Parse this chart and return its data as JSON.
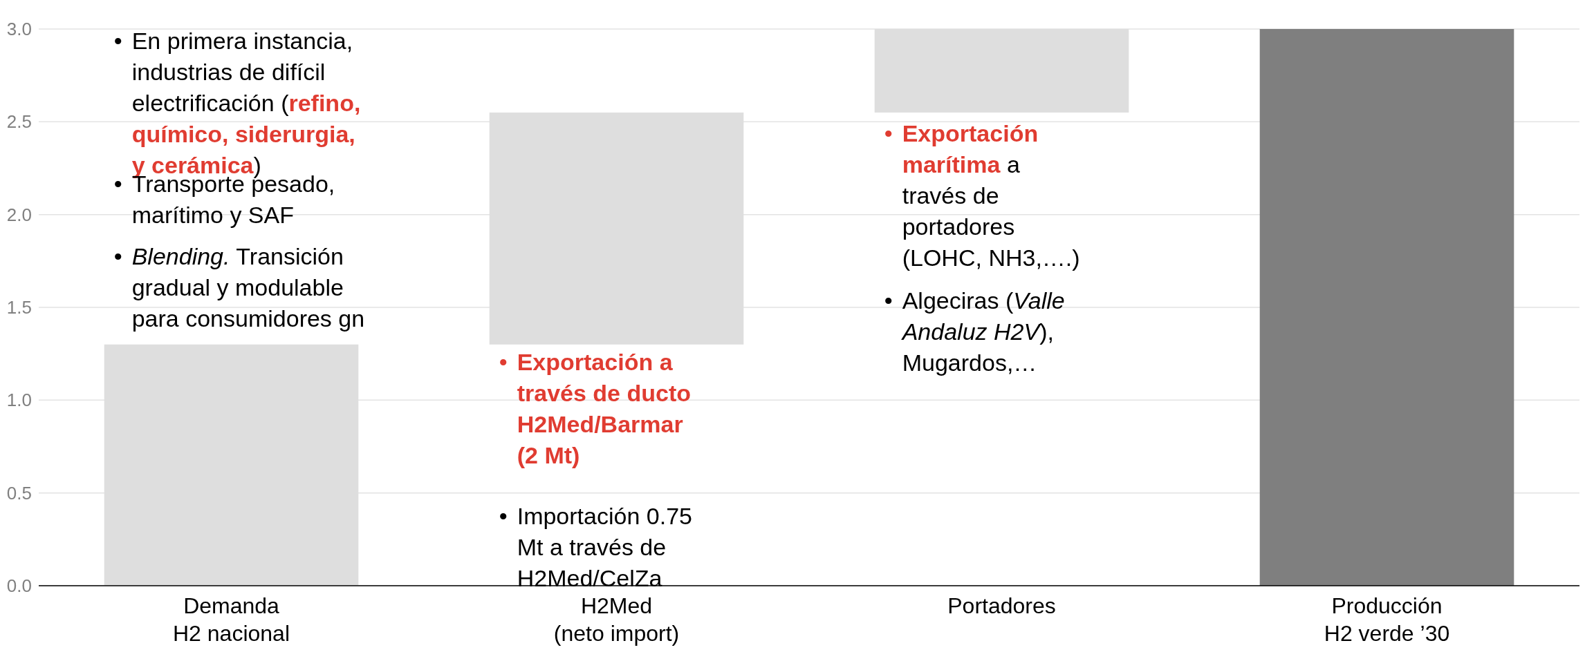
{
  "chart_data": {
    "type": "bar",
    "categories": [
      "Demanda\nH2 nacional",
      "H2Med\n(neto import)",
      "Portadores",
      "Producción\nH2 verde ’30"
    ],
    "values": [
      1.3,
      1.25,
      0.45,
      3.0
    ],
    "base": [
      0,
      1.3,
      2.55,
      0
    ],
    "colors": [
      "#dedede",
      "#dedede",
      "#dedede",
      "#7f7f7f"
    ],
    "ylim": [
      0,
      3
    ],
    "yticks": [
      {
        "value": 0,
        "label": "0.0"
      },
      {
        "value": 0.5,
        "label": "0.5"
      },
      {
        "value": 1,
        "label": "1.0"
      },
      {
        "value": 1.5,
        "label": "1.5"
      },
      {
        "value": 2,
        "label": "2.0"
      },
      {
        "value": 2.5,
        "label": "2.5"
      },
      {
        "value": 3,
        "label": "3.0"
      }
    ],
    "grid": "y",
    "annotations": [
      "• En primera instancia, industrias de difícil electrificación (refino, químico, siderurgia, y cerámica)",
      "• Transporte pesado, marítimo y SAF",
      "• Blending. Transición gradual y modulable para consumidores gn",
      "• Exportación a través de ducto H2Med/Barmar (2 Mt)",
      "• Importación 0.75 Mt a través de H2Med/CelZa",
      "• Exportación marítima a través de portadores (LOHC, NH3,….)",
      "• Algeciras (Valle Andaluz H2V), Mugardos,…"
    ]
  }
}
